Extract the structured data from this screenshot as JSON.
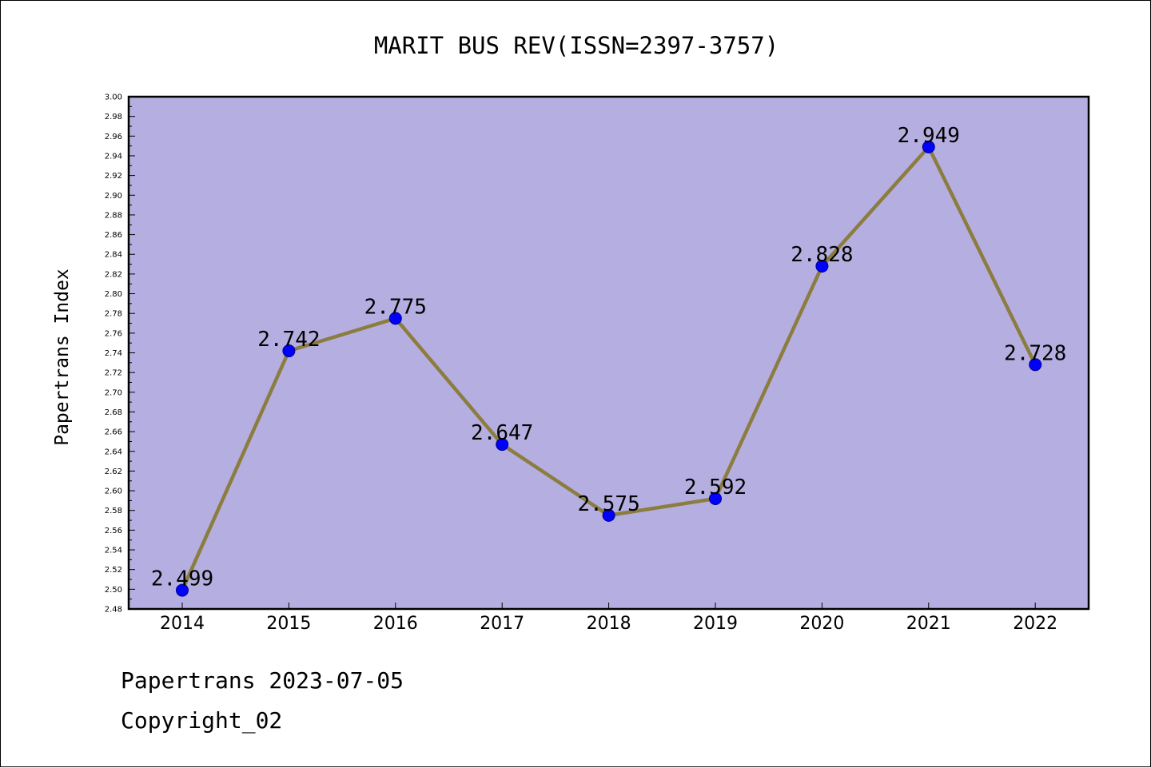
{
  "colors": {
    "plot_background": "#b5aee0",
    "line": "#8b7d3f",
    "marker": "#0000ff",
    "marker_edge": "#00008b",
    "axis": "#000000"
  },
  "chart_data": {
    "type": "line",
    "title": "MARIT BUS REV(ISSN=2397-3757)",
    "ylabel": "Papertrans Index",
    "xlabel": "",
    "ylim": [
      2.48,
      3.0
    ],
    "ytick_step": 0.02,
    "grid": false,
    "categories": [
      "2014",
      "2015",
      "2016",
      "2017",
      "2018",
      "2019",
      "2020",
      "2021",
      "2022"
    ],
    "values": [
      2.499,
      2.742,
      2.775,
      2.647,
      2.575,
      2.592,
      2.828,
      2.949,
      2.728
    ],
    "data_labels": [
      "2.499",
      "2.742",
      "2.775",
      "2.647",
      "2.575",
      "2.592",
      "2.828",
      "2.949",
      "2.728"
    ]
  },
  "footer": {
    "line1": "Papertrans 2023-07-05",
    "line2": "Copyright_02"
  }
}
